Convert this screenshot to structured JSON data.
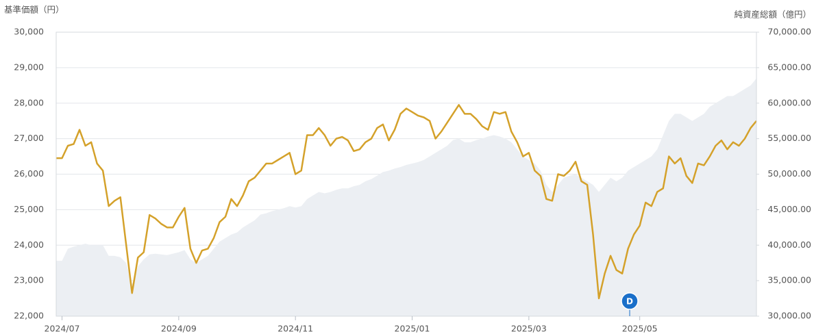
{
  "chart_data": {
    "type": "line",
    "y_axis_title": "基準価額（円）",
    "y2_axis_title": "純資産総額（億円）",
    "annotation": "D",
    "grid": true,
    "categories": [
      null,
      "2024/07",
      null,
      null,
      null,
      null,
      null,
      null,
      null,
      null,
      null,
      null,
      null,
      null,
      null,
      null,
      null,
      null,
      null,
      null,
      null,
      "2024/09",
      null,
      null,
      null,
      null,
      null,
      null,
      null,
      null,
      null,
      null,
      null,
      null,
      null,
      null,
      null,
      null,
      null,
      null,
      null,
      "2024/11",
      null,
      null,
      null,
      null,
      null,
      null,
      null,
      null,
      null,
      null,
      null,
      null,
      null,
      null,
      null,
      null,
      null,
      null,
      null,
      "2025/01",
      null,
      null,
      null,
      null,
      null,
      null,
      null,
      null,
      null,
      null,
      null,
      null,
      null,
      null,
      null,
      null,
      null,
      null,
      null,
      "2025/03",
      null,
      null,
      null,
      null,
      null,
      null,
      null,
      null,
      null,
      null,
      null,
      null,
      null,
      null,
      null,
      null,
      null,
      null,
      "2025/05",
      null,
      null,
      null,
      null,
      null,
      null,
      null,
      null,
      null,
      null,
      null,
      null,
      null,
      null,
      null,
      null,
      null,
      null,
      null,
      null
    ],
    "ylim": [
      22000,
      30000
    ],
    "yticks": [
      {
        "value": 22000,
        "label": "22,000"
      },
      {
        "value": 23000,
        "label": "23,000"
      },
      {
        "value": 24000,
        "label": "24,000"
      },
      {
        "value": 25000,
        "label": "25,000"
      },
      {
        "value": 26000,
        "label": "26,000"
      },
      {
        "value": 27000,
        "label": "27,000"
      },
      {
        "value": 28000,
        "label": "28,000"
      },
      {
        "value": 29000,
        "label": "29,000"
      },
      {
        "value": 30000,
        "label": "30,000"
      }
    ],
    "y2lim": [
      30000,
      70000
    ],
    "y2ticks": [
      {
        "value": 30000,
        "label": "30,000.00"
      },
      {
        "value": 35000,
        "label": "35,000.00"
      },
      {
        "value": 40000,
        "label": "40,000.00"
      },
      {
        "value": 45000,
        "label": "45,000.00"
      },
      {
        "value": 50000,
        "label": "50,000.00"
      },
      {
        "value": 55000,
        "label": "55,000.00"
      },
      {
        "value": 60000,
        "label": "60,000.00"
      },
      {
        "value": 65000,
        "label": "65,000.00"
      },
      {
        "value": 70000,
        "label": "70,000.00"
      }
    ],
    "series": [
      {
        "name": "純資産総額",
        "type": "area",
        "axis": "y2",
        "color": "#eceff3",
        "values": [
          37800,
          37800,
          39500,
          39800,
          40000,
          40200,
          40000,
          40000,
          40000,
          38500,
          38500,
          38300,
          37500,
          34500,
          37000,
          38000,
          38700,
          38800,
          38700,
          38600,
          38800,
          39000,
          39300,
          38000,
          37500,
          38000,
          38500,
          39500,
          40500,
          41000,
          41500,
          41800,
          42500,
          43000,
          43500,
          44300,
          44500,
          44800,
          45000,
          45200,
          45500,
          45300,
          45500,
          46500,
          47000,
          47500,
          47300,
          47500,
          47800,
          48000,
          48000,
          48300,
          48500,
          49000,
          49300,
          49800,
          50300,
          50500,
          50800,
          51000,
          51300,
          51500,
          51700,
          52000,
          52500,
          53000,
          53500,
          54000,
          54800,
          55000,
          54500,
          54500,
          54800,
          55000,
          55300,
          55500,
          55300,
          55000,
          54500,
          53500,
          52500,
          52000,
          51500,
          50500,
          48500,
          47500,
          48500,
          49500,
          49800,
          50000,
          49500,
          49000,
          48500,
          47500,
          48500,
          49500,
          49000,
          49500,
          50500,
          51000,
          51500,
          52000,
          52500,
          53500,
          55500,
          57500,
          58500,
          58500,
          58000,
          57500,
          58000,
          58500,
          59500,
          60000,
          60500,
          61000,
          61000,
          61500,
          62000,
          62500,
          63500
        ]
      },
      {
        "name": "基準価額",
        "type": "line",
        "axis": "y",
        "color": "#d4a12a",
        "values": [
          26450,
          26450,
          26800,
          26850,
          27250,
          26800,
          26900,
          26300,
          26100,
          25100,
          25250,
          25350,
          24000,
          22650,
          23650,
          23800,
          24850,
          24750,
          24600,
          24500,
          24500,
          24800,
          25050,
          23900,
          23500,
          23850,
          23900,
          24200,
          24650,
          24800,
          25300,
          25100,
          25400,
          25800,
          25900,
          26100,
          26300,
          26300,
          26400,
          26500,
          26600,
          26000,
          26100,
          27100,
          27100,
          27300,
          27100,
          26800,
          27000,
          27050,
          26950,
          26650,
          26700,
          26900,
          27000,
          27300,
          27400,
          26950,
          27250,
          27700,
          27850,
          27750,
          27650,
          27600,
          27500,
          27000,
          27200,
          27450,
          27700,
          27950,
          27700,
          27700,
          27550,
          27350,
          27250,
          27750,
          27700,
          27750,
          27200,
          26900,
          26500,
          26600,
          26100,
          25950,
          25300,
          25250,
          26000,
          25950,
          26100,
          26350,
          25800,
          25700,
          24300,
          22500,
          23200,
          23700,
          23300,
          23200,
          23900,
          24300,
          24550,
          25200,
          25100,
          25500,
          25600,
          26500,
          26300,
          26450,
          25950,
          25750,
          26300,
          26250,
          26500,
          26800,
          26950,
          26700,
          26900,
          26800,
          27000,
          27300,
          27500
        ]
      }
    ]
  }
}
